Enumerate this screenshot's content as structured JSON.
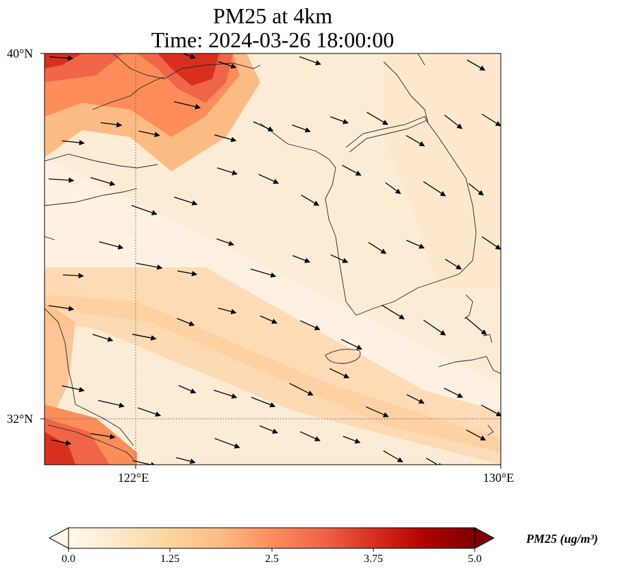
{
  "title": {
    "line1": "PM25 at 4km",
    "line2": "Time: 2024-03-26 18:00:00"
  },
  "axes": {
    "lat_ticks": [
      "40°N",
      "32°N"
    ],
    "lon_ticks": [
      "122°E",
      "130°E"
    ],
    "lon_range": [
      120,
      130
    ],
    "lat_range": [
      31,
      40
    ],
    "gridlines": [
      {
        "lon": 122
      },
      {
        "lat": 32
      }
    ]
  },
  "colorbar": {
    "label": "PM25 (ug/m³)",
    "ticks": [
      "0.0",
      "1.25",
      "2.5",
      "3.75",
      "5.0"
    ],
    "range": [
      0,
      5
    ],
    "colormap": "OrRd",
    "extend": "both",
    "colors": [
      "#fff7ec",
      "#fee8c8",
      "#fdd49e",
      "#fdbb84",
      "#fc8d59",
      "#ef6548",
      "#d7301f",
      "#b30000",
      "#7f0000"
    ]
  },
  "colors": {
    "background_low": "#fdebd2",
    "coast": "#222222",
    "wind_arrow": "#000000",
    "grid": "#555555"
  },
  "field": {
    "high_nw": 3.6,
    "mid_band": 1.5,
    "low": 0.6
  },
  "wind_arrows": {
    "direction": "southeastward",
    "rows": [
      {
        "lat": 39.9,
        "count": 11
      },
      {
        "lat": 38.5,
        "count": 12
      },
      {
        "lat": 37.0,
        "count": 11
      },
      {
        "lat": 35.5,
        "count": 12
      },
      {
        "lat": 34.0,
        "count": 11
      },
      {
        "lat": 32.6,
        "count": 12
      },
      {
        "lat": 31.4,
        "count": 11
      }
    ]
  }
}
